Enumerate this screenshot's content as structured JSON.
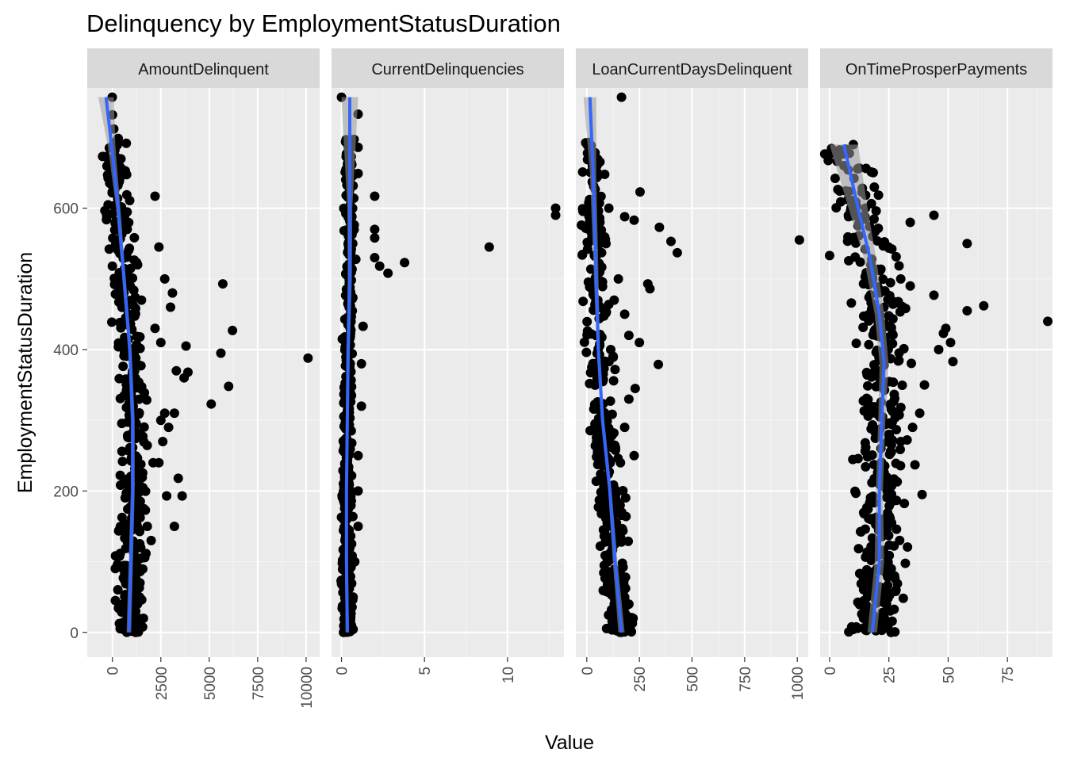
{
  "chart_data": {
    "type": "scatter",
    "title": "Delinquency by EmploymentStatusDuration",
    "xlabel": "Value",
    "ylabel": "EmploymentStatusDuration",
    "ylim": [
      -35,
      770
    ],
    "y_ticks": [
      0,
      200,
      400,
      600
    ],
    "grid": true,
    "facets_share_y": true,
    "facets": [
      {
        "name": "AmountDelinquent",
        "xlim": [
          -1300,
          10700
        ],
        "x_ticks": [
          0,
          2500,
          5000,
          7500,
          10000
        ],
        "points": [
          [
            -10,
            757
          ],
          [
            5,
            732
          ],
          [
            70,
            712
          ],
          [
            110,
            690
          ],
          [
            2200,
            617
          ],
          [
            2400,
            545
          ],
          [
            5700,
            493
          ],
          [
            6200,
            427
          ],
          [
            3800,
            405
          ],
          [
            10100,
            388
          ],
          [
            5600,
            395
          ],
          [
            6000,
            348
          ],
          [
            5100,
            323
          ],
          [
            3700,
            360
          ],
          [
            3300,
            370
          ],
          [
            3900,
            368
          ],
          [
            3200,
            310
          ],
          [
            3400,
            218
          ],
          [
            3600,
            193
          ],
          [
            2800,
            193
          ],
          [
            3200,
            150
          ],
          [
            2000,
            130
          ],
          [
            1800,
            150
          ],
          [
            2400,
            240
          ],
          [
            2600,
            270
          ],
          [
            2900,
            290
          ],
          [
            2700,
            310
          ],
          [
            2100,
            240
          ],
          [
            2500,
            300
          ],
          [
            1300,
            520
          ],
          [
            1500,
            470
          ],
          [
            2200,
            430
          ],
          [
            2500,
            410
          ],
          [
            2700,
            500
          ],
          [
            3100,
            480
          ],
          [
            3000,
            460
          ],
          [
            1600,
            20
          ],
          [
            1400,
            50
          ],
          [
            1100,
            60
          ],
          [
            900,
            10
          ],
          [
            700,
            3
          ],
          [
            600,
            15
          ]
        ],
        "smooth": [
          [
            -330,
            757
          ],
          [
            -50,
            690
          ],
          [
            300,
            600
          ],
          [
            600,
            500
          ],
          [
            900,
            400
          ],
          [
            1050,
            300
          ],
          [
            1050,
            200
          ],
          [
            950,
            100
          ],
          [
            850,
            0
          ]
        ],
        "ribbon_half_width": [
          [
            757,
            400
          ],
          [
            690,
            200
          ],
          [
            600,
            110
          ],
          [
            500,
            90
          ],
          [
            400,
            90
          ],
          [
            300,
            100
          ],
          [
            200,
            100
          ],
          [
            100,
            110
          ],
          [
            0,
            120
          ]
        ]
      },
      {
        "name": "CurrentDelinquencies",
        "xlim": [
          -0.6,
          13.4
        ],
        "x_ticks": [
          0,
          5,
          10
        ],
        "points": [
          [
            0,
            757
          ],
          [
            1,
            733
          ],
          [
            1,
            686
          ],
          [
            1,
            649
          ],
          [
            2,
            617
          ],
          [
            2,
            570
          ],
          [
            2,
            558
          ],
          [
            2,
            530
          ],
          [
            2.3,
            518
          ],
          [
            2.8,
            508
          ],
          [
            3.8,
            523
          ],
          [
            8.9,
            545
          ],
          [
            12.9,
            600
          ],
          [
            12.9,
            590
          ],
          [
            1.3,
            433
          ],
          [
            1.2,
            380
          ],
          [
            1.2,
            320
          ],
          [
            1,
            250
          ],
          [
            1,
            200
          ],
          [
            1,
            150
          ],
          [
            0.8,
            100
          ],
          [
            0.7,
            50
          ],
          [
            0.6,
            10
          ],
          [
            0.5,
            3
          ]
        ],
        "smooth": [
          [
            0.5,
            757
          ],
          [
            0.5,
            600
          ],
          [
            0.5,
            500
          ],
          [
            0.4,
            400
          ],
          [
            0.35,
            300
          ],
          [
            0.3,
            200
          ],
          [
            0.3,
            100
          ],
          [
            0.35,
            0
          ]
        ],
        "ribbon_half_width": [
          [
            757,
            0.5
          ],
          [
            600,
            0.15
          ],
          [
            400,
            0.1
          ],
          [
            200,
            0.08
          ],
          [
            0,
            0.1
          ]
        ]
      },
      {
        "name": "LoanCurrentDaysDelinquent",
        "xlim": [
          -52,
          1052
        ],
        "x_ticks": [
          0,
          250,
          500,
          750,
          1000
        ],
        "points": [
          [
            165,
            757
          ],
          [
            253,
            623
          ],
          [
            180,
            588
          ],
          [
            225,
            583
          ],
          [
            345,
            573
          ],
          [
            400,
            553
          ],
          [
            430,
            537
          ],
          [
            1010,
            555
          ],
          [
            290,
            493
          ],
          [
            300,
            486
          ],
          [
            340,
            379
          ],
          [
            225,
            250
          ],
          [
            180,
            290
          ],
          [
            200,
            330
          ],
          [
            230,
            345
          ],
          [
            250,
            410
          ],
          [
            200,
            420
          ],
          [
            180,
            450
          ],
          [
            130,
            470
          ],
          [
            150,
            500
          ],
          [
            220,
            20
          ],
          [
            180,
            50
          ],
          [
            200,
            40
          ],
          [
            160,
            80
          ],
          [
            210,
            2
          ],
          [
            190,
            10
          ],
          [
            100,
            100
          ],
          [
            120,
            150
          ],
          [
            140,
            200
          ],
          [
            160,
            240
          ]
        ],
        "smooth": [
          [
            15,
            757
          ],
          [
            30,
            650
          ],
          [
            45,
            500
          ],
          [
            55,
            400
          ],
          [
            75,
            300
          ],
          [
            110,
            200
          ],
          [
            135,
            100
          ],
          [
            165,
            0
          ]
        ],
        "ribbon_half_width": [
          [
            757,
            30
          ],
          [
            650,
            15
          ],
          [
            400,
            8
          ],
          [
            200,
            8
          ],
          [
            0,
            15
          ]
        ]
      },
      {
        "name": "OnTimeProsperPayments",
        "xlim": [
          -4,
          94
        ],
        "x_ticks": [
          0,
          25,
          50,
          75
        ],
        "points": [
          [
            10,
            690
          ],
          [
            9,
            600
          ],
          [
            8,
            588
          ],
          [
            12,
            575
          ],
          [
            34,
            580
          ],
          [
            44,
            590
          ],
          [
            58,
            550
          ],
          [
            0,
            533
          ],
          [
            30,
            500
          ],
          [
            34,
            490
          ],
          [
            44,
            477
          ],
          [
            65,
            462
          ],
          [
            58,
            455
          ],
          [
            92,
            440
          ],
          [
            49,
            430
          ],
          [
            48,
            423
          ],
          [
            51,
            410
          ],
          [
            46,
            400
          ],
          [
            52,
            383
          ],
          [
            36,
            237
          ],
          [
            39,
            195
          ],
          [
            30,
            270
          ],
          [
            26,
            255
          ],
          [
            22,
            230
          ],
          [
            40,
            350
          ],
          [
            38,
            310
          ],
          [
            35,
            290
          ],
          [
            18,
            20
          ],
          [
            20,
            10
          ],
          [
            22,
            3
          ],
          [
            28,
            60
          ],
          [
            26,
            90
          ]
        ],
        "smooth": [
          [
            6,
            690
          ],
          [
            12,
            600
          ],
          [
            17,
            530
          ],
          [
            21,
            450
          ],
          [
            23,
            380
          ],
          [
            22,
            300
          ],
          [
            21,
            200
          ],
          [
            21,
            100
          ],
          [
            18,
            0
          ]
        ],
        "ribbon_half_width": [
          [
            690,
            6
          ],
          [
            600,
            4
          ],
          [
            500,
            2
          ],
          [
            400,
            2
          ],
          [
            300,
            1.5
          ],
          [
            200,
            1.5
          ],
          [
            100,
            2
          ],
          [
            0,
            2
          ]
        ]
      }
    ]
  }
}
